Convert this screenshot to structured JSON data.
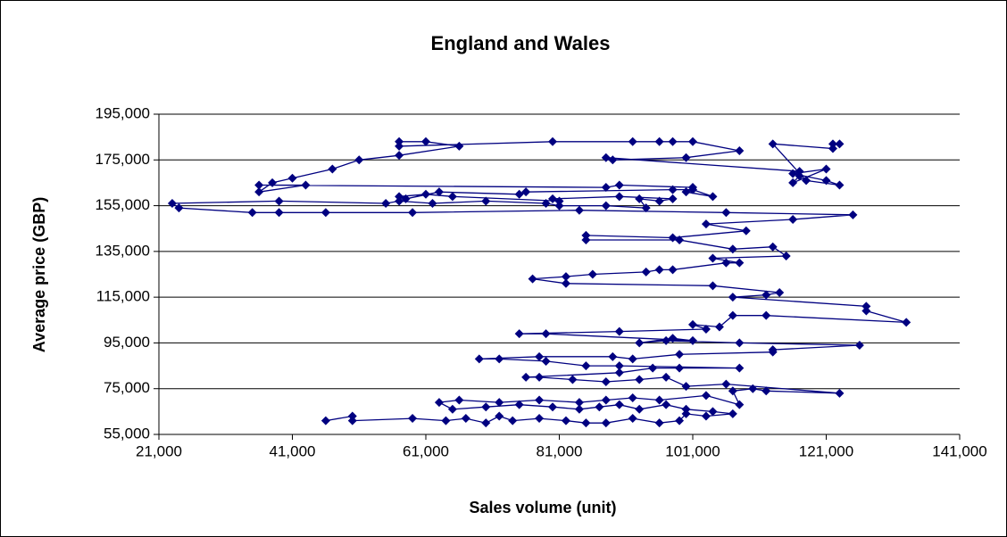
{
  "chart_data": {
    "type": "scatter",
    "title": "England and Wales",
    "x_label": "Sales volume (unit)",
    "y_label": "Average price (GBP)",
    "xlim": [
      21000,
      141000
    ],
    "xticks": [
      {
        "value": 21000,
        "label": "21,000"
      },
      {
        "value": 41000,
        "label": "41,000"
      },
      {
        "value": 61000,
        "label": "61,000"
      },
      {
        "value": 81000,
        "label": "81,000"
      },
      {
        "value": 101000,
        "label": "101,000"
      },
      {
        "value": 121000,
        "label": "121,000"
      },
      {
        "value": 141000,
        "label": "141,000"
      }
    ],
    "ylim": [
      55000,
      195000
    ],
    "yticks": [
      {
        "value": 55000,
        "label": "55,000"
      },
      {
        "value": 75000,
        "label": "75,000"
      },
      {
        "value": 95000,
        "label": "95,000"
      },
      {
        "value": 115000,
        "label": "115,000"
      },
      {
        "value": 135000,
        "label": "135,000"
      },
      {
        "value": 155000,
        "label": "155,000"
      },
      {
        "value": 175000,
        "label": "175,000"
      },
      {
        "value": 195000,
        "label": "195,000"
      }
    ],
    "grid": true,
    "series": [
      {
        "color": "#000080",
        "x": [
          46000,
          50000,
          50000,
          59000,
          64000,
          67000,
          70000,
          72000,
          74000,
          78000,
          82000,
          85000,
          88000,
          92000,
          96000,
          99000,
          100000,
          103000,
          107000,
          104000,
          100000,
          97000,
          93000,
          90000,
          87000,
          84000,
          80000,
          75000,
          70000,
          65000,
          63000,
          66000,
          72000,
          78000,
          84000,
          88000,
          92000,
          96000,
          103000,
          108000,
          107000,
          110000,
          112000,
          123000,
          106000,
          100000,
          97000,
          93000,
          88000,
          83000,
          78000,
          76000,
          90000,
          95000,
          99000,
          108000,
          90000,
          85000,
          79000,
          72000,
          69000,
          78000,
          89000,
          92000,
          99000,
          113000,
          113000,
          126000,
          108000,
          97000,
          93000,
          98000,
          101000,
          79000,
          75000,
          90000,
          103000,
          101000,
          105000,
          107000,
          112000,
          133000,
          127000,
          127000,
          107000,
          112000,
          114000,
          104000,
          82000,
          77000,
          82000,
          86000,
          94000,
          96000,
          98000,
          106000,
          108000,
          104000,
          115000,
          113000,
          107000,
          99000,
          85000,
          85000,
          98000,
          109000,
          103000,
          116000,
          125000,
          106000,
          84000,
          59000,
          46000,
          39000,
          35000,
          24000,
          23000,
          39000,
          55000,
          57000,
          62000,
          70000,
          79000,
          81000,
          88000,
          94000,
          93000,
          96000,
          98000,
          90000,
          80000,
          81000,
          65000,
          61000,
          57000,
          58000,
          63000,
          75000,
          76000,
          98000,
          101000,
          104000,
          100000,
          101000,
          90000,
          88000,
          36000,
          43000,
          36000,
          38000,
          41000,
          47000,
          51000,
          57000,
          66000,
          61000,
          57000,
          57000,
          80000,
          92000,
          96000,
          98000,
          101000,
          108000,
          100000,
          89000,
          88000,
          117000,
          117000,
          116000,
          121000,
          116000,
          121000,
          123000,
          118000,
          113000,
          122000,
          122000,
          123000
        ],
        "values": [
          61000,
          63000,
          61000,
          62000,
          61000,
          62000,
          60000,
          63000,
          61000,
          62000,
          61000,
          60000,
          60000,
          62000,
          60000,
          61000,
          64000,
          63000,
          64000,
          65000,
          66000,
          68000,
          66000,
          68000,
          67000,
          66000,
          67000,
          68000,
          67000,
          66000,
          69000,
          70000,
          69000,
          70000,
          69000,
          70000,
          71000,
          70000,
          72000,
          68000,
          74000,
          75000,
          74000,
          73000,
          77000,
          76000,
          80000,
          79000,
          78000,
          79000,
          80000,
          80000,
          82000,
          84000,
          84000,
          84000,
          85000,
          85000,
          87000,
          88000,
          88000,
          89000,
          89000,
          88000,
          90000,
          91000,
          92000,
          94000,
          95000,
          96000,
          95000,
          97000,
          96000,
          99000,
          99000,
          100000,
          101000,
          103000,
          102000,
          107000,
          107000,
          104000,
          109000,
          111000,
          115000,
          116000,
          117000,
          120000,
          121000,
          123000,
          124000,
          125000,
          126000,
          127000,
          127000,
          130000,
          130000,
          132000,
          133000,
          137000,
          136000,
          140000,
          140000,
          142000,
          141000,
          144000,
          147000,
          149000,
          151000,
          152000,
          153000,
          152000,
          152000,
          152000,
          152000,
          154000,
          156000,
          157000,
          156000,
          157000,
          156000,
          157000,
          156000,
          155000,
          155000,
          154000,
          158000,
          157000,
          158000,
          159000,
          158000,
          157000,
          159000,
          160000,
          159000,
          158000,
          161000,
          160000,
          161000,
          162000,
          162000,
          159000,
          161000,
          163000,
          164000,
          163000,
          164000,
          164000,
          161000,
          165000,
          167000,
          171000,
          175000,
          177000,
          181000,
          183000,
          183000,
          181000,
          183000,
          183000,
          183000,
          183000,
          183000,
          179000,
          176000,
          175000,
          176000,
          170000,
          168000,
          165000,
          171000,
          169000,
          166000,
          164000,
          166000,
          182000,
          180000,
          182000,
          182000
        ]
      }
    ]
  }
}
